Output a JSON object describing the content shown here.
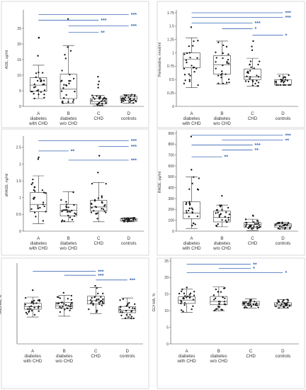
{
  "chart_data": [
    {
      "type": "box",
      "ylabel": "AGE, ug/ml",
      "ylim": [
        0,
        30
      ],
      "yticks": [
        0,
        5,
        10,
        15,
        20,
        25
      ],
      "categories": [
        {
          "letter": "A",
          "line1": "diabetes",
          "line2": "with CHD"
        },
        {
          "letter": "B",
          "line1": "diabetes",
          "line2": "w/o CHD"
        },
        {
          "letter": "C",
          "line1": "CHD",
          "line2": ""
        },
        {
          "letter": "D",
          "line1": "controls",
          "line2": ""
        }
      ],
      "boxes": [
        {
          "min": 2.5,
          "q1": 4.8,
          "median": 6.8,
          "q3": 9.2,
          "max": 13.2,
          "outliers": [
            16.2,
            22,
            22
          ]
        },
        {
          "min": 1.0,
          "q1": 2.5,
          "median": 5.5,
          "q3": 10.3,
          "max": 19.5,
          "outliers": [
            28
          ]
        },
        {
          "min": 0.2,
          "q1": 0.8,
          "median": 1.5,
          "q3": 2.5,
          "max": 3.5,
          "outliers": [
            6,
            7,
            8,
            9.5
          ]
        },
        {
          "min": 1.0,
          "q1": 2.0,
          "median": 2.7,
          "q3": 3.3,
          "max": 3.8,
          "outliers": []
        }
      ],
      "significance": [
        {
          "from": 0,
          "to": 3,
          "label": "***"
        },
        {
          "from": 0,
          "to": 2,
          "label": "***"
        },
        {
          "from": 1,
          "to": 3,
          "label": "***"
        },
        {
          "from": 1,
          "to": 2,
          "label": "**"
        }
      ]
    },
    {
      "type": "box",
      "ylabel": "Pentosidine, nmol/ml",
      "ylim": [
        0,
        1.75
      ],
      "yticks": [
        0,
        0.25,
        0.5,
        0.75,
        1,
        1.25,
        1.5,
        1.75
      ],
      "categories": [
        {
          "letter": "A",
          "line1": "diabetes",
          "line2": "with CHD"
        },
        {
          "letter": "B",
          "line1": "diabetes",
          "line2": "w/o CHD"
        },
        {
          "letter": "C",
          "line1": "CHD",
          "line2": ""
        },
        {
          "letter": "D",
          "line1": "controls",
          "line2": ""
        }
      ],
      "boxes": [
        {
          "min": 0.35,
          "q1": 0.72,
          "median": 0.88,
          "q3": 1.0,
          "max": 1.28,
          "outliers": [
            1.48
          ]
        },
        {
          "min": 0.42,
          "q1": 0.6,
          "median": 0.78,
          "q3": 0.95,
          "max": 1.22,
          "outliers": []
        },
        {
          "min": 0.38,
          "q1": 0.5,
          "median": 0.55,
          "q3": 0.7,
          "max": 0.9,
          "outliers": [
            1.05,
            1.12,
            1.22
          ]
        },
        {
          "min": 0.4,
          "q1": 0.4,
          "median": 0.4,
          "q3": 0.5,
          "max": 0.6,
          "outliers": []
        }
      ],
      "significance": [
        {
          "from": 0,
          "to": 3,
          "label": "***"
        },
        {
          "from": 0,
          "to": 3,
          "label": "***"
        },
        {
          "from": 0,
          "to": 2,
          "label": "***"
        },
        {
          "from": 1,
          "to": 2,
          "label": "*"
        },
        {
          "from": 2,
          "to": 3,
          "label": "*"
        }
      ]
    },
    {
      "type": "box",
      "ylabel": "sRAGE, ng/ml",
      "ylim": [
        0,
        2.75
      ],
      "yticks": [
        0,
        0.5,
        1,
        1.5,
        2,
        2.5
      ],
      "categories": [
        {
          "letter": "A",
          "line1": "diabetes",
          "line2": "with CHD"
        },
        {
          "letter": "B",
          "line1": "diabetes",
          "line2": "w/o CHD"
        },
        {
          "letter": "C",
          "line1": "CHD",
          "line2": ""
        },
        {
          "letter": "D",
          "line1": "controls",
          "line2": ""
        }
      ],
      "boxes": [
        {
          "min": 0.22,
          "q1": 0.58,
          "median": 0.8,
          "q3": 1.15,
          "max": 1.65,
          "outliers": [
            2.15,
            2.2
          ]
        },
        {
          "min": 0.28,
          "q1": 0.45,
          "median": 0.62,
          "q3": 0.8,
          "max": 1.18,
          "outliers": []
        },
        {
          "min": 0.28,
          "q1": 0.6,
          "median": 0.72,
          "q3": 0.92,
          "max": 1.45,
          "outliers": [
            1.75,
            2.25
          ]
        },
        {
          "min": 0.28,
          "q1": 0.3,
          "median": 0.3,
          "q3": 0.38,
          "max": 0.4,
          "outliers": []
        }
      ],
      "significance": [
        {
          "from": 0,
          "to": 3,
          "label": "***"
        },
        {
          "from": 0,
          "to": 1,
          "label": "**"
        },
        {
          "from": 2,
          "to": 3,
          "label": "***"
        },
        {
          "from": 1,
          "to": 3,
          "label": "***"
        }
      ]
    },
    {
      "type": "box",
      "ylabel": "RAGE, pg/ml",
      "ylim": [
        0,
        900
      ],
      "yticks": [
        0,
        100,
        200,
        300,
        400,
        500,
        600,
        700,
        800,
        900
      ],
      "categories": [
        {
          "letter": "A",
          "line1": "diabetes",
          "line2": "with CHD"
        },
        {
          "letter": "B",
          "line1": "diabetes",
          "line2": "w/o CHD"
        },
        {
          "letter": "C",
          "line1": "CHD",
          "line2": ""
        },
        {
          "letter": "D",
          "line1": "controls",
          "line2": ""
        }
      ],
      "boxes": [
        {
          "min": 25,
          "q1": 115,
          "median": 165,
          "q3": 270,
          "max": 500,
          "outliers": [
            565,
            870
          ]
        },
        {
          "min": 40,
          "q1": 85,
          "median": 125,
          "q3": 185,
          "max": 240,
          "outliers": [
            325
          ]
        },
        {
          "min": 5,
          "q1": 35,
          "median": 60,
          "q3": 80,
          "max": 110,
          "outliers": [
            140,
            145
          ]
        },
        {
          "min": 20,
          "q1": 38,
          "median": 55,
          "q3": 68,
          "max": 80,
          "outliers": []
        }
      ],
      "significance": [
        {
          "from": 0,
          "to": 3,
          "label": "***"
        },
        {
          "from": 1,
          "to": 3,
          "label": "**"
        },
        {
          "from": 0,
          "to": 2,
          "label": "***"
        },
        {
          "from": 1,
          "to": 2,
          "label": "**"
        },
        {
          "from": 0,
          "to": 1,
          "label": "**"
        }
      ]
    },
    {
      "type": "box",
      "ylabel": "THIO-HA, %",
      "ylim": [
        0,
        45
      ],
      "yticks": [],
      "categories": [
        {
          "letter": "A",
          "line1": "diabetes",
          "line2": "with CHD"
        },
        {
          "letter": "B",
          "line1": "diabetes",
          "line2": "w/o CHD"
        },
        {
          "letter": "C",
          "line1": "CHD",
          "line2": ""
        },
        {
          "letter": "D",
          "line1": "controls",
          "line2": ""
        }
      ],
      "boxes": [
        {
          "min": 15.5,
          "q1": 20,
          "median": 21.5,
          "q3": 23.5,
          "max": 27,
          "outliers": [
            31
          ]
        },
        {
          "min": 16,
          "q1": 20.5,
          "median": 22,
          "q3": 24,
          "max": 28,
          "outliers": [
            29.5
          ]
        },
        {
          "min": 17.5,
          "q1": 23,
          "median": 25,
          "q3": 27.5,
          "max": 32.5,
          "outliers": [
            33.5
          ]
        },
        {
          "min": 14.5,
          "q1": 18,
          "median": 19.5,
          "q3": 21.5,
          "max": 26.5,
          "outliers": []
        }
      ],
      "significance": [
        {
          "from": 0,
          "to": 2,
          "label": "***"
        },
        {
          "from": 1,
          "to": 2,
          "label": "***"
        },
        {
          "from": 2,
          "to": 3,
          "label": "***"
        }
      ]
    },
    {
      "type": "box",
      "ylabel": "GLY-HA, %",
      "ylim": [
        0,
        25
      ],
      "yticks": [
        0,
        5,
        10,
        15,
        20,
        25
      ],
      "categories": [
        {
          "letter": "A",
          "line1": "diabetes",
          "line2": "with CHD"
        },
        {
          "letter": "B",
          "line1": "diabetes",
          "line2": "w/o CHD"
        },
        {
          "letter": "C",
          "line1": "CHD",
          "line2": ""
        },
        {
          "letter": "D",
          "line1": "controls",
          "line2": ""
        }
      ],
      "boxes": [
        {
          "min": 9.5,
          "q1": 12.2,
          "median": 13.2,
          "q3": 14.2,
          "max": 16.5,
          "outliers": [
            17
          ]
        },
        {
          "min": 10,
          "q1": 11.8,
          "median": 12.8,
          "q3": 14.3,
          "max": 17.2,
          "outliers": []
        },
        {
          "min": 10.8,
          "q1": 11.6,
          "median": 12.1,
          "q3": 12.8,
          "max": 13.6,
          "outliers": []
        },
        {
          "min": 10.8,
          "q1": 11.4,
          "median": 11.8,
          "q3": 12.4,
          "max": 13.4,
          "outliers": []
        }
      ],
      "significance": [
        {
          "from": 0,
          "to": 2,
          "label": "**"
        },
        {
          "from": 1,
          "to": 2,
          "label": "*"
        },
        {
          "from": 0,
          "to": 3,
          "label": "*"
        }
      ]
    }
  ]
}
